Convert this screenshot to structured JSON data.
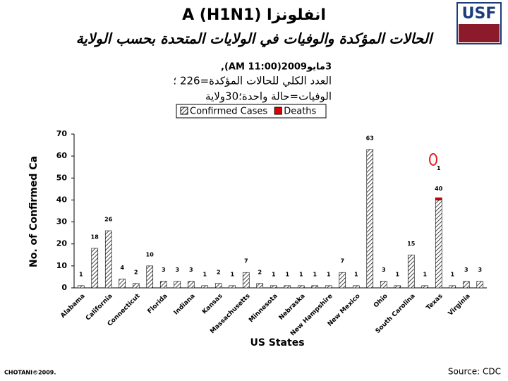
{
  "logo": "USF",
  "chart_data": {
    "type": "bar",
    "title": "انفلونزا A (H1N1)",
    "subtitle": "الحالات المؤكدة والوفيات في الولايات المتحدة بحسب الولاية",
    "notes": [
      "3مايو2009(11:00 AM),",
      "العدد الكلي للحالات المؤكدة=226 ؛",
      "الوفيات=حالة واحدة؛30ولاية"
    ],
    "y_label": "No. of Confirmed Ca",
    "x_label": "US States",
    "categories": [
      "Alabama",
      null,
      "California",
      null,
      "Connecticut",
      null,
      "Florida",
      null,
      "Indiana",
      null,
      "Kansas",
      null,
      "Massachusetts",
      null,
      "Minnesota",
      null,
      "Nebraska",
      null,
      "New Hampshire",
      null,
      "New Mexico",
      null,
      "Ohio",
      null,
      "South Carolina",
      null,
      "Texas",
      null,
      "Virginia",
      null
    ],
    "series": [
      {
        "name": "Confirmed Cases",
        "color": "#444444",
        "values": [
          1,
          18,
          26,
          4,
          2,
          10,
          3,
          3,
          3,
          1,
          2,
          1,
          7,
          2,
          1,
          1,
          1,
          1,
          1,
          7,
          1,
          63,
          3,
          1,
          15,
          1,
          40,
          1,
          3,
          3
        ]
      },
      {
        "name": "Deaths",
        "color": "#e00000",
        "values": [
          null,
          null,
          null,
          null,
          null,
          null,
          null,
          null,
          null,
          null,
          null,
          null,
          null,
          null,
          null,
          null,
          null,
          null,
          null,
          null,
          null,
          null,
          null,
          null,
          null,
          null,
          1,
          null,
          null,
          null
        ]
      }
    ],
    "stacked": true,
    "ylim": [
      0,
      70
    ],
    "yticks": [
      0,
      10,
      20,
      30,
      40,
      50,
      60,
      70
    ],
    "legend": "top",
    "source": "Source: CDC",
    "credit": "CHOTANI©2009."
  }
}
